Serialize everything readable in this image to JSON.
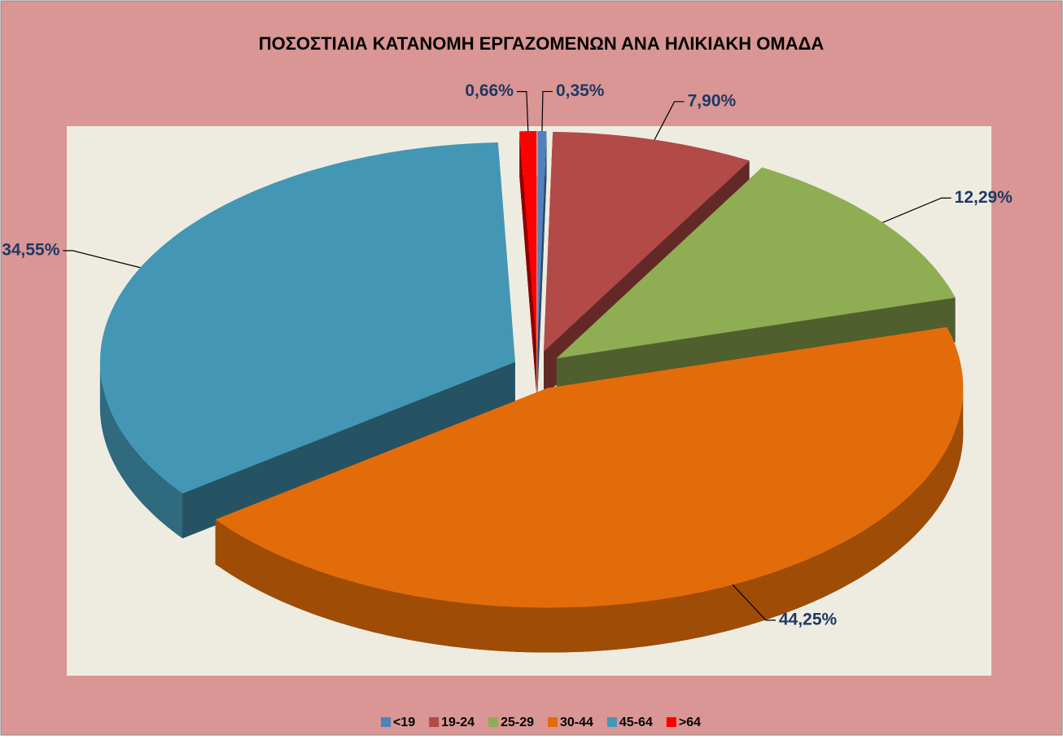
{
  "chart_data": {
    "type": "pie3d",
    "title": "ΠΟΣΟΣΤΙΑΙΑ ΚΑΤΑΝΟΜΗ ΕΡΓΑΖΟΜΕΝΩΝ  ΑΝΑ ΗΛΙΚΙΑΚΗ ΟΜΑΔΑ",
    "categories": [
      "<19",
      "19-24",
      "25-29",
      "30-44",
      "45-64",
      ">64"
    ],
    "values": [
      0.35,
      7.9,
      12.29,
      44.25,
      34.55,
      0.66
    ],
    "value_labels": [
      "0,35%",
      "7,90%",
      "12,29%",
      "44,25%",
      "34,55%",
      "0,66%"
    ],
    "colors": [
      "#4f81bd",
      "#b24a47",
      "#8fad52",
      "#e36c0a",
      "#4397b5",
      "#ff0000"
    ],
    "legend": "bottom"
  }
}
